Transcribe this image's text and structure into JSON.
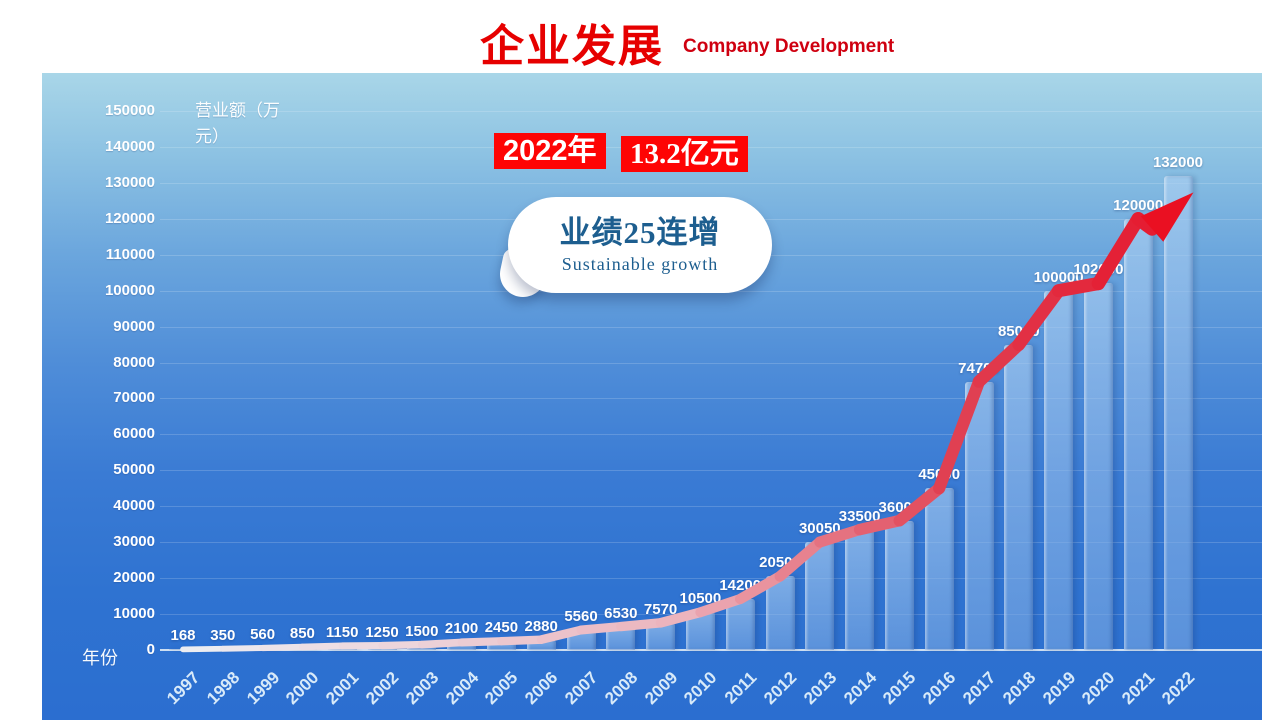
{
  "header": {
    "title": "企业发展",
    "subtitle": "Company Development"
  },
  "callouts": {
    "year_badge": "2022年",
    "amount_badge": "13.2亿元",
    "bubble_title": "业绩25连增",
    "bubble_subtitle": "Sustainable growth"
  },
  "colors": {
    "accent_red": "#e60000",
    "badge_bg": "#fe0404",
    "bubble_text": "#1d5e8f",
    "bar_fill": "rgba(140,185,235,0.62)",
    "line_start": "#edeff3",
    "line_mid": "#ecb4bd",
    "line_end": "#e6152b",
    "panel_top": "#a9d6e8",
    "panel_bottom": "#2b6ed0"
  },
  "chart_data": {
    "type": "bar",
    "title": "",
    "ylabel": "营业额（万元）",
    "xlabel": "年份",
    "categories": [
      "1997",
      "1998",
      "1999",
      "2000",
      "2001",
      "2002",
      "2003",
      "2004",
      "2005",
      "2006",
      "2007",
      "2008",
      "2009",
      "2010",
      "2011",
      "2012",
      "2013",
      "2014",
      "2015",
      "2016",
      "2017",
      "2018",
      "2019",
      "2020",
      "2021",
      "2022"
    ],
    "values": [
      168,
      350,
      560,
      850,
      1150,
      1250,
      1500,
      2100,
      2450,
      2880,
      5560,
      6530,
      7570,
      10500,
      14200,
      20500,
      30050,
      33500,
      36000,
      45000,
      74700,
      85000,
      100000,
      102000,
      120000,
      132000
    ],
    "ylim": [
      0,
      150000
    ],
    "ytick_step": 10000,
    "grid": true,
    "legend": false,
    "overlay_series": {
      "name": "trend-arrow",
      "type": "line",
      "follows": "values",
      "style": "white-to-red thickening line ending in red arrowhead"
    }
  }
}
